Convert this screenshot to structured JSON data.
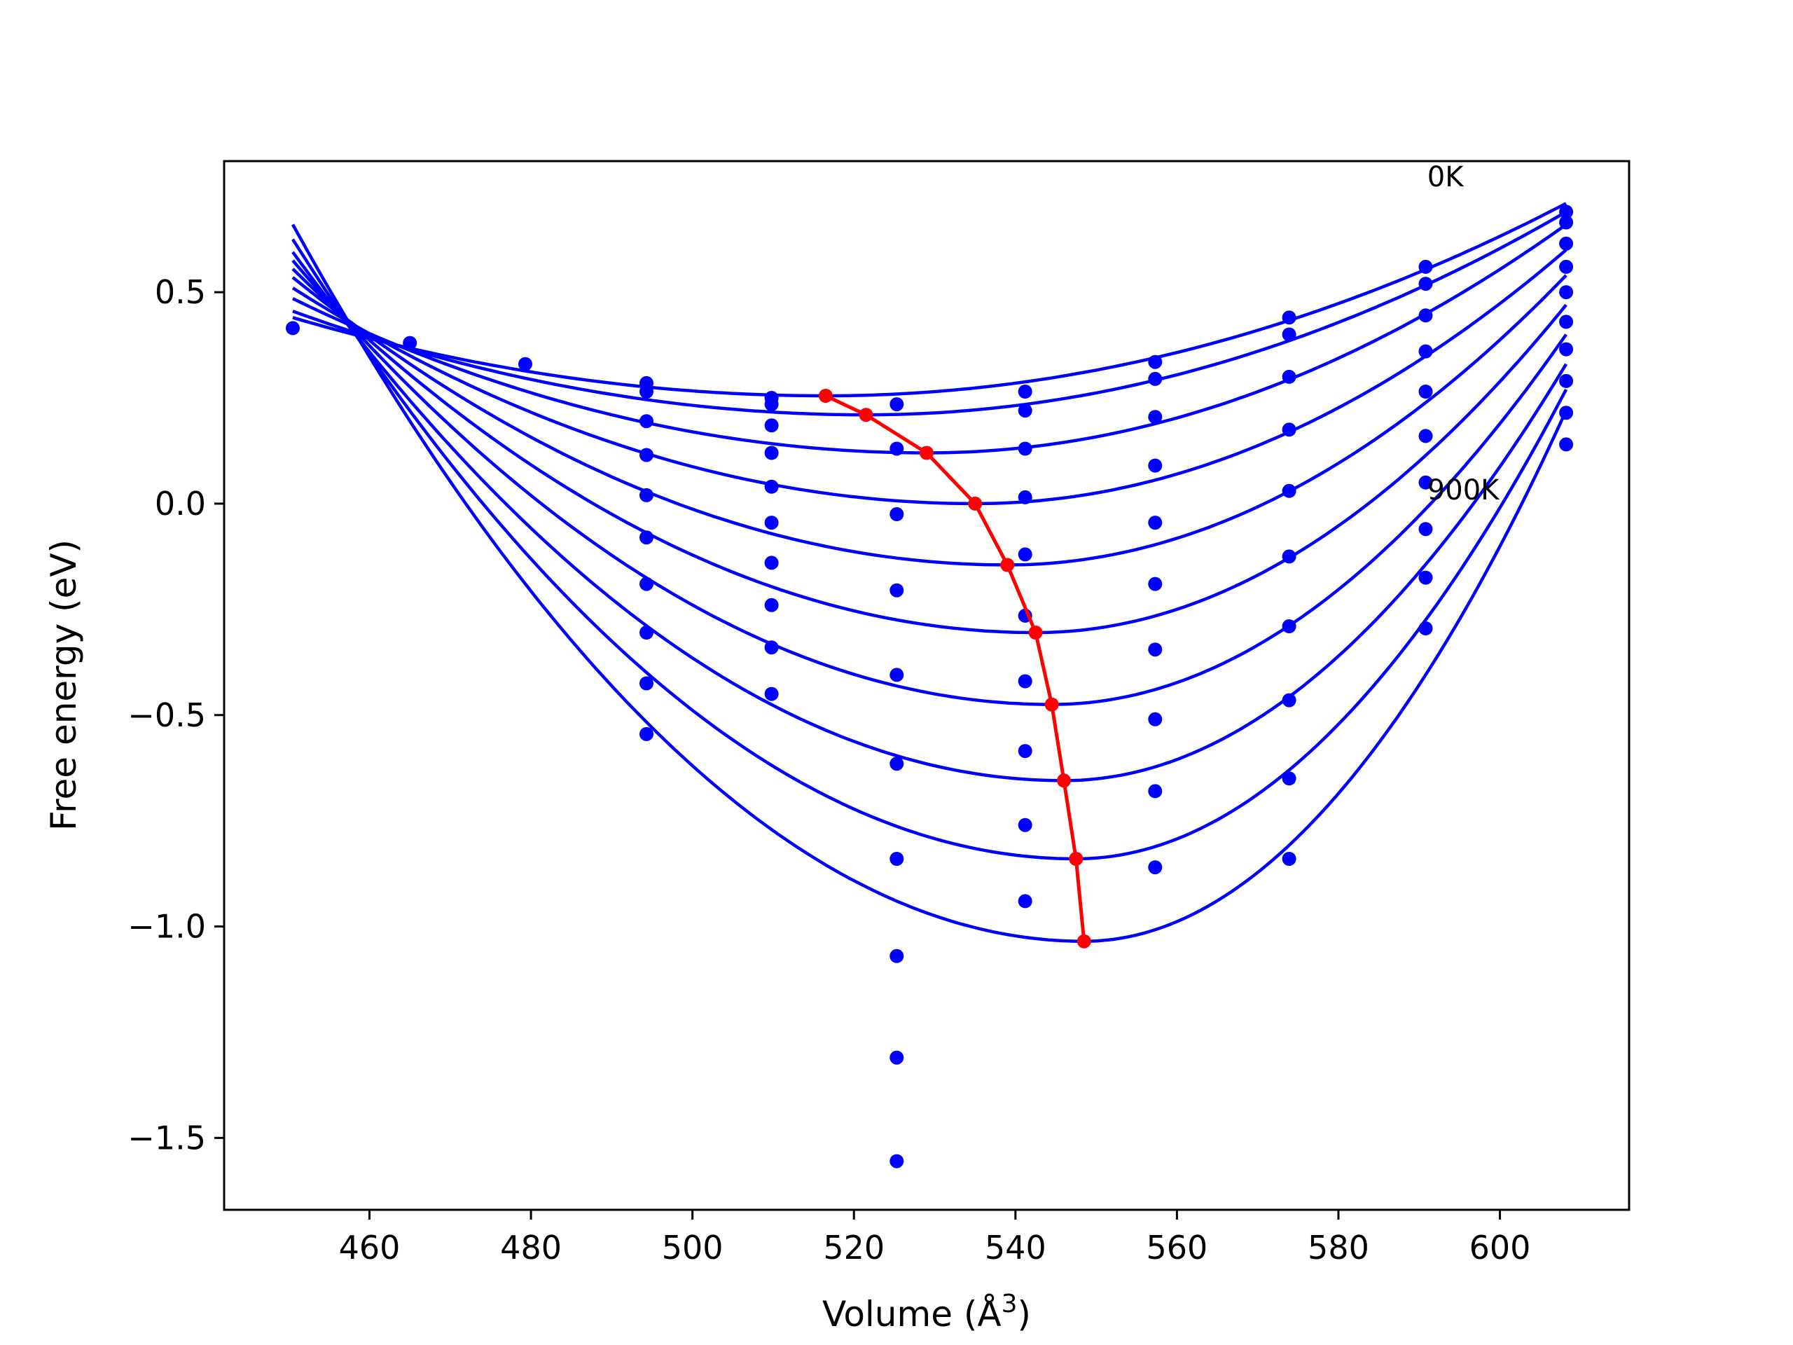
{
  "chart_data": {
    "type": "line",
    "title": "",
    "xlabel": "Volume (Å",
    "xlabel_sup": "3",
    "xlabel_close": ")",
    "ylabel": "Free energy (eV)",
    "xlim": [
      442,
      616
    ],
    "ylim": [
      -1.67,
      0.81
    ],
    "xticks": [
      460,
      480,
      500,
      520,
      540,
      560,
      580,
      600
    ],
    "xtick_labels": [
      "460",
      "480",
      "500",
      "520",
      "540",
      "560",
      "580",
      "600"
    ],
    "yticks": [
      0.5,
      0.0,
      -0.5,
      -1.0,
      -1.5
    ],
    "ytick_labels": [
      "0.5",
      "0.0",
      "−0.5",
      "−1.0",
      "−1.5"
    ],
    "grid": false,
    "colors": {
      "curves": "#0000ff",
      "points": "#0000ff",
      "minima": "#ff0000",
      "axes": "#000000"
    },
    "annotations": [
      {
        "text": "0K",
        "x": 591,
        "y": 0.75
      },
      {
        "text": "900K",
        "x": 591,
        "y": 0.01
      }
    ],
    "fit_range": [
      450.5,
      608.2
    ],
    "curves": [
      {
        "vmin": 516.5,
        "emin": 0.255,
        "e450": 0.44,
        "e608": 0.71
      },
      {
        "vmin": 521.5,
        "emin": 0.21,
        "e450": 0.455,
        "e608": 0.69
      },
      {
        "vmin": 529.0,
        "emin": 0.12,
        "e450": 0.485,
        "e608": 0.66
      },
      {
        "vmin": 535.0,
        "emin": 0.0,
        "e450": 0.51,
        "e608": 0.6
      },
      {
        "vmin": 539.0,
        "emin": -0.145,
        "e450": 0.535,
        "e608": 0.54
      },
      {
        "vmin": 542.5,
        "emin": -0.305,
        "e450": 0.555,
        "e608": 0.47
      },
      {
        "vmin": 544.5,
        "emin": -0.475,
        "e450": 0.575,
        "e608": 0.4
      },
      {
        "vmin": 546.0,
        "emin": -0.655,
        "e450": 0.595,
        "e608": 0.33
      },
      {
        "vmin": 547.5,
        "emin": -0.84,
        "e450": 0.625,
        "e608": 0.27
      },
      {
        "vmin": 548.5,
        "emin": -1.035,
        "e450": 0.66,
        "e608": 0.22
      }
    ],
    "minima": {
      "x": [
        516.5,
        521.5,
        529.0,
        535.0,
        539.0,
        542.5,
        544.5,
        546.0,
        547.5,
        548.5
      ],
      "y": [
        0.255,
        0.21,
        0.12,
        0.0,
        -0.145,
        -0.305,
        -0.475,
        -0.655,
        -0.84,
        -1.035
      ]
    },
    "points": [
      {
        "x": 450.5,
        "y": 0.415
      },
      {
        "x": 465.0,
        "y": 0.38
      },
      {
        "x": 479.3,
        "y": 0.33
      },
      {
        "x": 494.3,
        "y": 0.285
      },
      {
        "x": 494.3,
        "y": 0.265
      },
      {
        "x": 494.3,
        "y": 0.195
      },
      {
        "x": 494.3,
        "y": 0.115
      },
      {
        "x": 494.3,
        "y": 0.02
      },
      {
        "x": 494.3,
        "y": -0.08
      },
      {
        "x": 494.3,
        "y": -0.19
      },
      {
        "x": 494.3,
        "y": -0.305
      },
      {
        "x": 494.3,
        "y": -0.425
      },
      {
        "x": 494.3,
        "y": -0.545
      },
      {
        "x": 509.8,
        "y": 0.25
      },
      {
        "x": 509.8,
        "y": 0.235
      },
      {
        "x": 509.8,
        "y": 0.185
      },
      {
        "x": 509.8,
        "y": 0.12
      },
      {
        "x": 509.8,
        "y": 0.04
      },
      {
        "x": 509.8,
        "y": -0.045
      },
      {
        "x": 509.8,
        "y": -0.14
      },
      {
        "x": 509.8,
        "y": -0.24
      },
      {
        "x": 509.8,
        "y": -0.34
      },
      {
        "x": 509.8,
        "y": -0.45
      },
      {
        "x": 525.3,
        "y": 0.235
      },
      {
        "x": 525.3,
        "y": 0.13
      },
      {
        "x": 525.3,
        "y": -0.025
      },
      {
        "x": 525.3,
        "y": -0.205
      },
      {
        "x": 525.3,
        "y": -0.405
      },
      {
        "x": 525.3,
        "y": -0.615
      },
      {
        "x": 525.3,
        "y": -0.84
      },
      {
        "x": 525.3,
        "y": -1.07
      },
      {
        "x": 525.3,
        "y": -1.31
      },
      {
        "x": 525.3,
        "y": -1.555
      },
      {
        "x": 541.2,
        "y": 0.265
      },
      {
        "x": 541.2,
        "y": 0.22
      },
      {
        "x": 541.2,
        "y": 0.13
      },
      {
        "x": 541.2,
        "y": 0.015
      },
      {
        "x": 541.2,
        "y": -0.12
      },
      {
        "x": 541.2,
        "y": -0.265
      },
      {
        "x": 541.2,
        "y": -0.42
      },
      {
        "x": 541.2,
        "y": -0.585
      },
      {
        "x": 541.2,
        "y": -0.76
      },
      {
        "x": 541.2,
        "y": -0.94
      },
      {
        "x": 557.3,
        "y": 0.335
      },
      {
        "x": 557.3,
        "y": 0.295
      },
      {
        "x": 557.3,
        "y": 0.205
      },
      {
        "x": 557.3,
        "y": 0.09
      },
      {
        "x": 557.3,
        "y": -0.045
      },
      {
        "x": 557.3,
        "y": -0.19
      },
      {
        "x": 557.3,
        "y": -0.345
      },
      {
        "x": 557.3,
        "y": -0.51
      },
      {
        "x": 557.3,
        "y": -0.68
      },
      {
        "x": 557.3,
        "y": -0.86
      },
      {
        "x": 573.9,
        "y": 0.44
      },
      {
        "x": 573.9,
        "y": 0.4
      },
      {
        "x": 573.9,
        "y": 0.3
      },
      {
        "x": 573.9,
        "y": 0.175
      },
      {
        "x": 573.9,
        "y": 0.03
      },
      {
        "x": 573.9,
        "y": -0.125
      },
      {
        "x": 573.9,
        "y": -0.29
      },
      {
        "x": 573.9,
        "y": -0.465
      },
      {
        "x": 573.9,
        "y": -0.65
      },
      {
        "x": 573.9,
        "y": -0.84
      },
      {
        "x": 590.8,
        "y": 0.56
      },
      {
        "x": 590.8,
        "y": 0.52
      },
      {
        "x": 590.8,
        "y": 0.445
      },
      {
        "x": 590.8,
        "y": 0.36
      },
      {
        "x": 590.8,
        "y": 0.265
      },
      {
        "x": 590.8,
        "y": 0.16
      },
      {
        "x": 590.8,
        "y": 0.05
      },
      {
        "x": 590.8,
        "y": -0.06
      },
      {
        "x": 590.8,
        "y": -0.175
      },
      {
        "x": 590.8,
        "y": -0.295
      },
      {
        "x": 608.2,
        "y": 0.69
      },
      {
        "x": 608.2,
        "y": 0.665
      },
      {
        "x": 608.2,
        "y": 0.615
      },
      {
        "x": 608.2,
        "y": 0.56
      },
      {
        "x": 608.2,
        "y": 0.5
      },
      {
        "x": 608.2,
        "y": 0.43
      },
      {
        "x": 608.2,
        "y": 0.365
      },
      {
        "x": 608.2,
        "y": 0.29
      },
      {
        "x": 608.2,
        "y": 0.215
      },
      {
        "x": 608.2,
        "y": 0.14
      }
    ]
  }
}
